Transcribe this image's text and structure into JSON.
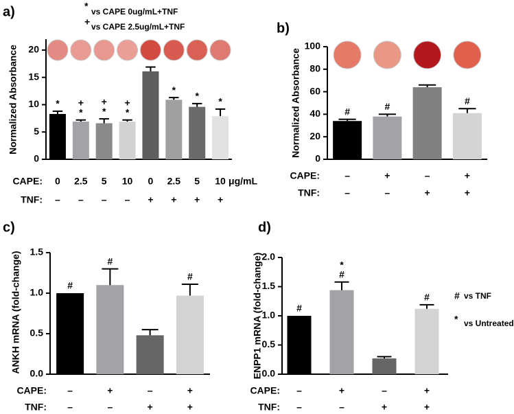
{
  "chart_data": [
    {
      "type": "bar",
      "panel": "a)",
      "ylabel": "Normalized Absorbance",
      "ylim": [
        0,
        22
      ],
      "yticks": [
        0,
        5,
        10,
        15,
        20
      ],
      "rows": [
        {
          "label": "CAPE:",
          "values": [
            "0",
            "2.5",
            "5",
            "10",
            "0",
            "2.5",
            "5",
            "10"
          ]
        },
        {
          "label": "TNF:",
          "values": [
            "–",
            "–",
            "–",
            "–",
            "+",
            "+",
            "+",
            "+"
          ]
        }
      ],
      "unit": "μg/mL",
      "values": [
        8.3,
        6.9,
        6.6,
        6.9,
        16.1,
        10.9,
        9.6,
        7.9
      ],
      "errors": [
        0.5,
        0.3,
        0.8,
        0.3,
        0.8,
        0.4,
        0.6,
        1.3
      ],
      "colors": [
        "#000000",
        "#a3a3a7",
        "#8a8a8a",
        "#d2d2d2",
        "#5e5e5e",
        "#a0a0a0",
        "#6b6b6b",
        "#e2e2e2"
      ],
      "annotations": [
        [
          "*"
        ],
        [
          "+",
          "*"
        ],
        [
          "+",
          "*"
        ],
        [
          "+",
          "*"
        ],
        [],
        [
          "*"
        ],
        [
          "*"
        ],
        [
          "*"
        ]
      ],
      "legend": [
        {
          "symbol": "*",
          "text": "vs CAPE 0ug/mL+TNF"
        },
        {
          "symbol": "+",
          "text": "vs CAPE 2.5ug/mL+TNF"
        }
      ]
    },
    {
      "type": "bar",
      "panel": "b)",
      "ylabel": "Normalized Absorbance",
      "ylim": [
        0,
        100
      ],
      "yticks": [
        0,
        20,
        40,
        60,
        80,
        100
      ],
      "rows": [
        {
          "label": "CAPE:",
          "values": [
            "–",
            "+",
            "–",
            "+"
          ]
        },
        {
          "label": "TNF:",
          "values": [
            "–",
            "–",
            "+",
            "+"
          ]
        }
      ],
      "values": [
        34,
        38,
        64,
        41
      ],
      "errors": [
        1.5,
        2,
        2,
        4
      ],
      "colors": [
        "#000000",
        "#a3a3a7",
        "#808080",
        "#d4d4d4"
      ],
      "annotations": [
        [
          "#"
        ],
        [
          "#"
        ],
        [],
        [
          "#"
        ]
      ]
    },
    {
      "type": "bar",
      "panel": "c)",
      "ylabel": "ANKH mRNA (fold-change)",
      "ylim": [
        0,
        1.5
      ],
      "yticks": [
        {
          "value": 0,
          "label": "0.0"
        },
        0.5,
        {
          "value": 1,
          "label": "1.0"
        },
        1.5
      ],
      "rows": [
        {
          "label": "CAPE:",
          "values": [
            "–",
            "+",
            "–",
            "+"
          ]
        },
        {
          "label": "TNF:",
          "values": [
            "–",
            "–",
            "+",
            "+"
          ]
        }
      ],
      "values": [
        1.0,
        1.1,
        0.48,
        0.97
      ],
      "errors": [
        null,
        0.2,
        0.07,
        0.14
      ],
      "colors": [
        "#000000",
        "#a3a3a7",
        "#666666",
        "#d4d4d4"
      ],
      "annotations": [
        [
          "#"
        ],
        [
          "#"
        ],
        [],
        [
          "#"
        ]
      ]
    },
    {
      "type": "bar",
      "panel": "d)",
      "ylabel": "ENPP1 mRNA (fold-change)",
      "ylim": [
        0,
        2
      ],
      "yticks": [
        {
          "value": 0,
          "label": "0.0"
        },
        0.5,
        {
          "value": 1,
          "label": "1.0"
        },
        1.5,
        {
          "value": 2,
          "label": "2.0"
        }
      ],
      "rows": [
        {
          "label": "CAPE:",
          "values": [
            "–",
            "+",
            "–",
            "+"
          ]
        },
        {
          "label": "TNF:",
          "values": [
            "–",
            "–",
            "+",
            "+"
          ]
        }
      ],
      "values": [
        1.0,
        1.44,
        0.27,
        1.12
      ],
      "errors": [
        null,
        0.14,
        0.03,
        0.07
      ],
      "colors": [
        "#000000",
        "#a3a3a7",
        "#666666",
        "#d4d4d4"
      ],
      "annotations": [
        [
          "#"
        ],
        [
          "*",
          "#"
        ],
        [],
        [
          "#"
        ]
      ],
      "legend": [
        {
          "symbol": "#",
          "text": "vs TNF"
        },
        {
          "symbol": "*",
          "text": "vs Untreated"
        }
      ]
    }
  ]
}
